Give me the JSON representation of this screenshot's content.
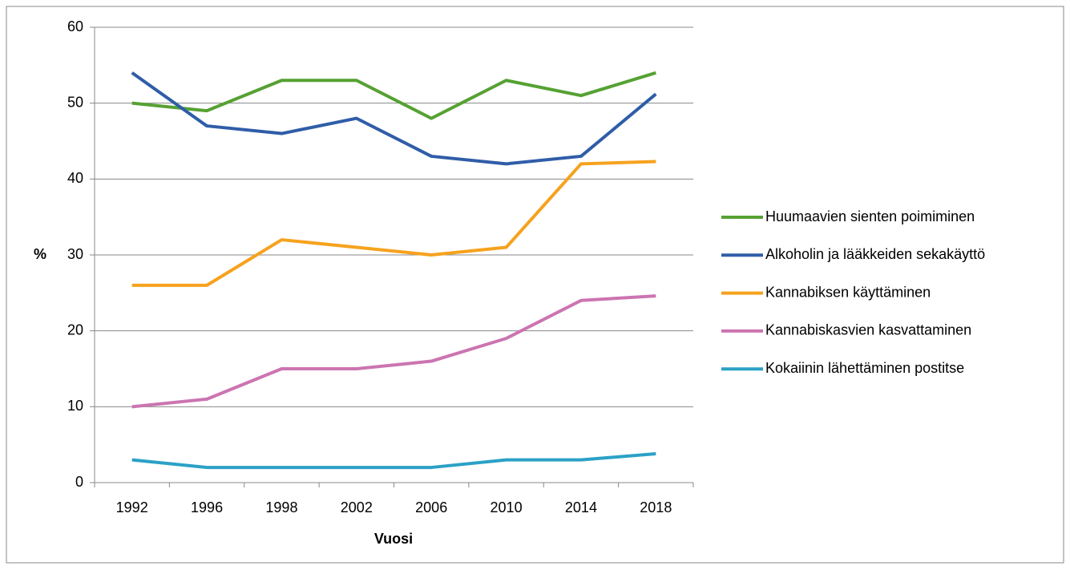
{
  "chart_data": {
    "type": "line",
    "x_label": "Vuosi",
    "y_label": "%",
    "categories": [
      "1992",
      "1996",
      "1998",
      "2002",
      "2006",
      "2010",
      "2014",
      "2018"
    ],
    "series": [
      {
        "name": "Huumaavien sienten poimiminen",
        "color": "#56a133",
        "values": [
          50,
          49,
          53,
          53,
          48,
          53,
          51,
          54
        ]
      },
      {
        "name": "Alkoholin ja lääkkeiden sekakäyttö",
        "color": "#2f5da8",
        "values": [
          54,
          47,
          46,
          48,
          43,
          42,
          43,
          51.2
        ]
      },
      {
        "name": "Kannabiksen käyttäminen",
        "color": "#f6a21e",
        "values": [
          26,
          26,
          32,
          31,
          30,
          31,
          42,
          42.3
        ]
      },
      {
        "name": "Kannabiskasvien kasvattaminen",
        "color": "#cc74b1",
        "values": [
          10,
          11,
          15,
          15,
          16,
          19,
          24,
          24.6
        ]
      },
      {
        "name": "Kokaiinin lähettäminen postitse",
        "color": "#2ba1c6",
        "values": [
          3,
          2,
          2,
          2,
          2,
          3,
          3,
          3.8
        ]
      }
    ],
    "ylim": [
      0,
      60
    ],
    "yticks": [
      0,
      10,
      20,
      30,
      40,
      50,
      60
    ],
    "grid": true,
    "legend": "right"
  }
}
